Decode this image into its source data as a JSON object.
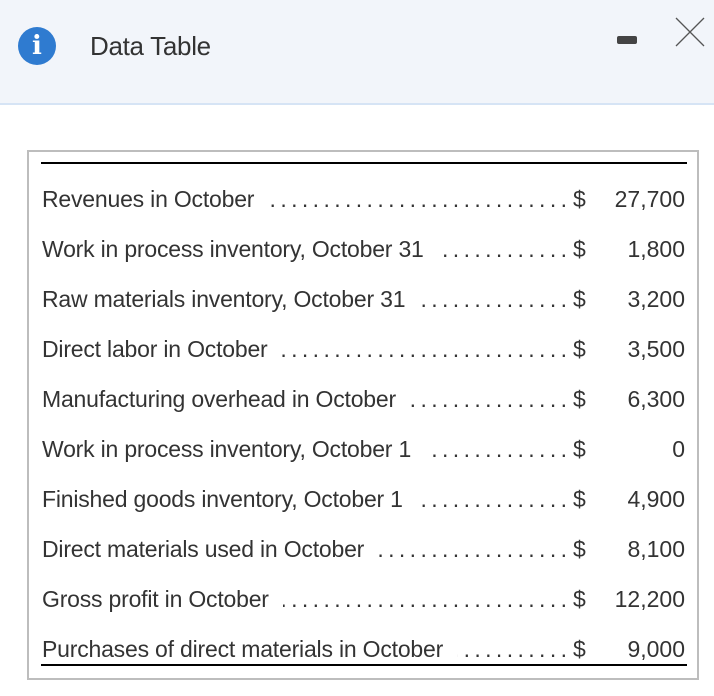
{
  "header": {
    "title": "Data Table",
    "icon": "info-icon",
    "minimize_icon": "minimize-icon",
    "close_icon": "close-icon",
    "accent": "#2f7bd0"
  },
  "table": {
    "currency": "$",
    "rows": [
      {
        "label": "Revenues in October",
        "value": "27,700"
      },
      {
        "label": "Work in process inventory, October 31",
        "value": "1,800"
      },
      {
        "label": "Raw materials inventory, October 31",
        "value": "3,200"
      },
      {
        "label": "Direct labor in October",
        "value": "3,500"
      },
      {
        "label": "Manufacturing overhead in October",
        "value": "6,300"
      },
      {
        "label": "Work in process inventory, October 1",
        "value": "0"
      },
      {
        "label": "Finished goods inventory, October 1",
        "value": "4,900"
      },
      {
        "label": "Direct materials used in October",
        "value": "8,100"
      },
      {
        "label": "Gross profit in October",
        "value": "12,200"
      },
      {
        "label": "Purchases of direct materials in October",
        "value": "9,000"
      }
    ]
  }
}
